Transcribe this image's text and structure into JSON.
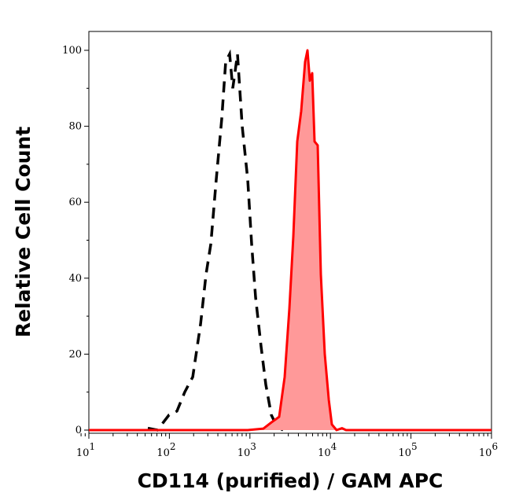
{
  "chart_data": {
    "type": "area",
    "title": "",
    "xlabel": "CD114 (purified) / GAM APC",
    "ylabel": "Relative Cell Count",
    "x_scale": "log",
    "xlim": [
      7.5,
      1000000
    ],
    "ylim": [
      0,
      100
    ],
    "x_ticks": [
      {
        "base": "10",
        "exp": "1",
        "v": 10
      },
      {
        "base": "10",
        "exp": "2",
        "v": 100
      },
      {
        "base": "10",
        "exp": "3",
        "v": 1000
      },
      {
        "base": "10",
        "exp": "4",
        "v": 10000
      },
      {
        "base": "10",
        "exp": "5",
        "v": 100000
      },
      {
        "base": "10",
        "exp": "6",
        "v": 1000000
      }
    ],
    "y_ticks": [
      "0",
      "20",
      "40",
      "60",
      "80",
      "100"
    ],
    "grid": false,
    "series": [
      {
        "style": "dashed",
        "color": "#000000",
        "x": [
          54,
          71,
          99,
          124,
          155,
          195,
          244,
          285,
          327,
          382,
          447,
          500,
          560,
          613,
          701,
          802,
          940,
          1050,
          1175,
          1375,
          1575,
          1845,
          2160,
          2585
        ],
        "y": [
          0.5,
          0,
          4,
          5,
          10,
          14,
          28,
          41,
          49,
          66,
          82,
          97,
          99,
          90,
          99,
          80,
          66,
          49,
          35,
          22,
          12,
          4,
          1,
          0
        ]
      },
      {
        "style": "filled",
        "color": "#ff0000",
        "fill": "#ff9999",
        "x": [
          7.5,
          800,
          940,
          1473,
          1845,
          2307,
          2702,
          3093,
          3461,
          3873,
          4335,
          4850,
          5190,
          5550,
          5930,
          6350,
          6950,
          7600,
          8510,
          9530,
          10420,
          11920,
          13960,
          15600,
          1000000
        ],
        "y": [
          0,
          0,
          0,
          0.4,
          2,
          3.5,
          14,
          32,
          51,
          76,
          84,
          97,
          100,
          92,
          94,
          76,
          75,
          41,
          20,
          8,
          1.5,
          0,
          0.5,
          0,
          0
        ]
      }
    ]
  }
}
